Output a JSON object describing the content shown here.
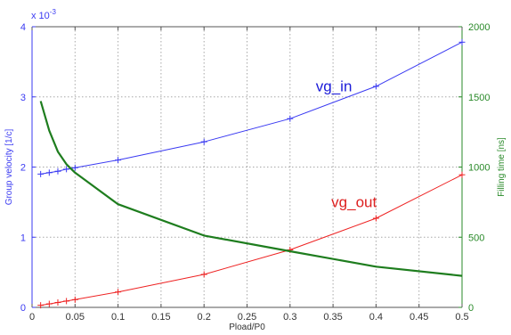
{
  "chart_data": {
    "type": "line",
    "title": "",
    "xlabel": "Pload/P0",
    "ylabel_left": "Group velocity [1/c]",
    "ylabel_right": "Filling time [ns]",
    "left_axis_exponent": "x 10",
    "left_axis_exponent_power": "-3",
    "xlim": [
      0,
      0.5
    ],
    "ylim_left": [
      0,
      4
    ],
    "ylim_right": [
      0,
      2000
    ],
    "x_ticks": [
      "0",
      "0.05",
      "0.1",
      "0.15",
      "0.2",
      "0.25",
      "0.3",
      "0.35",
      "0.4",
      "0.45",
      "0.5"
    ],
    "y_left_ticks": [
      "0",
      "1",
      "2",
      "3",
      "4"
    ],
    "y_right_ticks": [
      "0",
      "500",
      "1000",
      "1500",
      "2000"
    ],
    "grid": true,
    "colors": {
      "vg_in": "#3a3af2",
      "vg_out": "#ee2222",
      "filling_time": "#1e7d1e",
      "left_axis": "#3a3af2",
      "right_axis": "#2a8a2a",
      "grid": "#a8a8a8"
    },
    "series": [
      {
        "name": "vg_in",
        "axis": "left",
        "x": [
          0.01,
          0.02,
          0.03,
          0.04,
          0.05,
          0.1,
          0.2,
          0.3,
          0.4,
          0.5
        ],
        "values": [
          1.9,
          1.92,
          1.94,
          1.97,
          1.99,
          2.1,
          2.36,
          2.69,
          3.15,
          3.78
        ]
      },
      {
        "name": "vg_out",
        "axis": "left",
        "x": [
          0.01,
          0.02,
          0.03,
          0.04,
          0.05,
          0.1,
          0.2,
          0.3,
          0.4,
          0.5
        ],
        "values": [
          0.03,
          0.05,
          0.07,
          0.09,
          0.11,
          0.22,
          0.47,
          0.82,
          1.27,
          1.89
        ]
      },
      {
        "name": "",
        "axis": "right",
        "x": [
          0.01,
          0.02,
          0.03,
          0.04,
          0.05,
          0.1,
          0.2,
          0.3,
          0.4,
          0.5
        ],
        "values": [
          1470,
          1260,
          1110,
          1020,
          960,
          735,
          512,
          400,
          290,
          225
        ]
      }
    ],
    "annotations": [
      {
        "text": "vg_in",
        "x": 0.33,
        "y": 3.08,
        "axis": "left",
        "color": "#1a1ad8"
      },
      {
        "text": "vg_out",
        "x": 0.348,
        "y": 1.43,
        "axis": "left",
        "color": "#dd2020"
      }
    ]
  }
}
